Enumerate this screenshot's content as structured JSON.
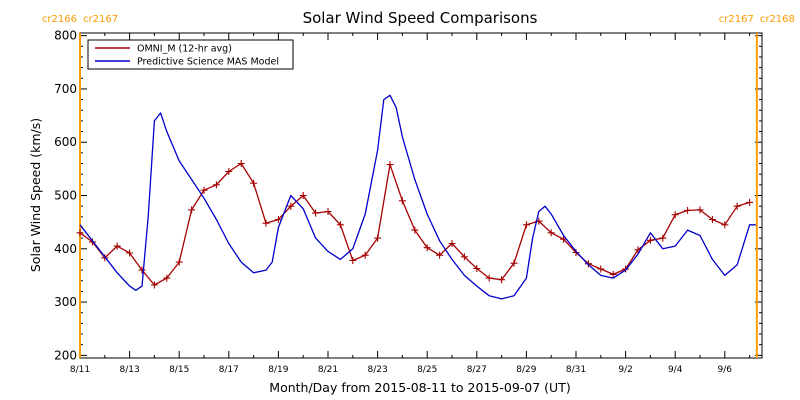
{
  "chart_data": {
    "type": "line",
    "title": "Solar Wind Speed Comparisons",
    "xlabel": "Month/Day from 2015-08-11 to 2015-09-07 (UT)",
    "ylabel": "Solar Wind Speed (km/s)",
    "xlim": [
      "2015-08-11",
      "2015-09-07T12:00"
    ],
    "ylim": [
      195,
      805
    ],
    "y_ticks": [
      200,
      300,
      400,
      500,
      600,
      700,
      800
    ],
    "x_tick_labels": [
      "8/11",
      "8/13",
      "8/15",
      "8/17",
      "8/19",
      "8/21",
      "8/23",
      "8/25",
      "8/27",
      "8/29",
      "8/31",
      "9/2",
      "9/4",
      "9/6"
    ],
    "x_tick_dates": [
      "2015-08-11",
      "2015-08-13",
      "2015-08-15",
      "2015-08-17",
      "2015-08-19",
      "2015-08-21",
      "2015-08-23",
      "2015-08-25",
      "2015-08-27",
      "2015-08-29",
      "2015-08-31",
      "2015-09-02",
      "2015-09-04",
      "2015-09-06"
    ],
    "legend_position": "top-left",
    "colors": {
      "omni": "#a50000",
      "mas": "#0000cc",
      "carrington": "#ff9a00"
    },
    "carrington_markers": [
      {
        "date": "2015-08-11",
        "left_label": "cr2166",
        "right_label": "cr2167"
      },
      {
        "date": "2015-09-07T07:00",
        "left_label": "cr2167",
        "right_label": "cr2168"
      }
    ],
    "series": [
      {
        "name": "OMNI_M (12-hr avg)",
        "marker": "plus",
        "x": [
          "2015-08-11T00:00",
          "2015-08-11T12:00",
          "2015-08-12T00:00",
          "2015-08-12T12:00",
          "2015-08-13T00:00",
          "2015-08-13T12:00",
          "2015-08-14T00:00",
          "2015-08-14T12:00",
          "2015-08-15T00:00",
          "2015-08-15T12:00",
          "2015-08-16T00:00",
          "2015-08-16T12:00",
          "2015-08-17T00:00",
          "2015-08-17T12:00",
          "2015-08-18T00:00",
          "2015-08-18T12:00",
          "2015-08-19T00:00",
          "2015-08-19T12:00",
          "2015-08-20T00:00",
          "2015-08-20T12:00",
          "2015-08-21T00:00",
          "2015-08-21T12:00",
          "2015-08-22T00:00",
          "2015-08-22T12:00",
          "2015-08-23T00:00",
          "2015-08-23T12:00",
          "2015-08-24T00:00",
          "2015-08-24T12:00",
          "2015-08-25T00:00",
          "2015-08-25T12:00",
          "2015-08-26T00:00",
          "2015-08-26T12:00",
          "2015-08-27T00:00",
          "2015-08-27T12:00",
          "2015-08-28T00:00",
          "2015-08-28T12:00",
          "2015-08-29T00:00",
          "2015-08-29T12:00",
          "2015-08-30T00:00",
          "2015-08-30T12:00",
          "2015-08-31T00:00",
          "2015-08-31T12:00",
          "2015-09-01T00:00",
          "2015-09-01T12:00",
          "2015-09-02T00:00",
          "2015-09-02T12:00",
          "2015-09-03T00:00",
          "2015-09-03T12:00",
          "2015-09-04T00:00",
          "2015-09-04T12:00",
          "2015-09-05T00:00",
          "2015-09-05T12:00",
          "2015-09-06T00:00",
          "2015-09-06T12:00",
          "2015-09-07T00:00"
        ],
        "y": [
          430,
          413,
          383,
          405,
          392,
          360,
          332,
          345,
          375,
          473,
          510,
          520,
          545,
          560,
          523,
          448,
          455,
          480,
          500,
          467,
          470,
          445,
          378,
          388,
          420,
          558,
          490,
          435,
          402,
          388,
          410,
          385,
          363,
          345,
          342,
          373,
          445,
          452,
          430,
          418,
          393,
          372,
          362,
          352,
          362,
          398,
          416,
          420,
          464,
          472,
          473,
          455,
          445,
          480,
          487
        ]
      },
      {
        "name": "Predictive Science MAS Model",
        "marker": "none",
        "x": [
          "2015-08-11T00:00",
          "2015-08-11T12:00",
          "2015-08-12T00:00",
          "2015-08-12T12:00",
          "2015-08-13T00:00",
          "2015-08-13T06:00",
          "2015-08-13T12:00",
          "2015-08-13T18:00",
          "2015-08-14T00:00",
          "2015-08-14T06:00",
          "2015-08-14T12:00",
          "2015-08-15T00:00",
          "2015-08-15T12:00",
          "2015-08-16T00:00",
          "2015-08-16T12:00",
          "2015-08-17T00:00",
          "2015-08-17T12:00",
          "2015-08-18T00:00",
          "2015-08-18T12:00",
          "2015-08-18T18:00",
          "2015-08-19T00:00",
          "2015-08-19T12:00",
          "2015-08-20T00:00",
          "2015-08-20T12:00",
          "2015-08-21T00:00",
          "2015-08-21T12:00",
          "2015-08-22T00:00",
          "2015-08-22T12:00",
          "2015-08-23T00:00",
          "2015-08-23T06:00",
          "2015-08-23T12:00",
          "2015-08-23T18:00",
          "2015-08-24T00:00",
          "2015-08-24T12:00",
          "2015-08-25T00:00",
          "2015-08-25T12:00",
          "2015-08-26T00:00",
          "2015-08-26T12:00",
          "2015-08-27T00:00",
          "2015-08-27T12:00",
          "2015-08-28T00:00",
          "2015-08-28T12:00",
          "2015-08-29T00:00",
          "2015-08-29T06:00",
          "2015-08-29T12:00",
          "2015-08-29T18:00",
          "2015-08-30T00:00",
          "2015-08-30T12:00",
          "2015-08-31T00:00",
          "2015-08-31T12:00",
          "2015-09-01T00:00",
          "2015-09-01T12:00",
          "2015-09-02T00:00",
          "2015-09-02T12:00",
          "2015-09-03T00:00",
          "2015-09-03T12:00",
          "2015-09-04T00:00",
          "2015-09-04T12:00",
          "2015-09-05T00:00",
          "2015-09-05T12:00",
          "2015-09-06T00:00",
          "2015-09-06T12:00",
          "2015-09-07T00:00",
          "2015-09-07T06:00"
        ],
        "y": [
          445,
          415,
          385,
          355,
          330,
          322,
          330,
          460,
          640,
          655,
          620,
          565,
          530,
          495,
          455,
          410,
          375,
          355,
          360,
          375,
          440,
          500,
          475,
          420,
          395,
          380,
          400,
          465,
          585,
          680,
          688,
          665,
          610,
          530,
          465,
          415,
          380,
          350,
          330,
          312,
          306,
          312,
          345,
          420,
          470,
          480,
          465,
          425,
          395,
          370,
          350,
          345,
          360,
          390,
          430,
          400,
          405,
          435,
          425,
          380,
          350,
          370,
          445,
          445
        ]
      }
    ]
  }
}
